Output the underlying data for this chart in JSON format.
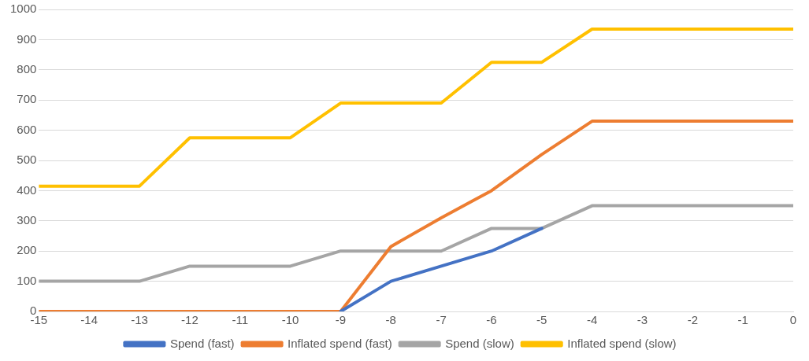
{
  "chart_data": {
    "type": "line",
    "x": [
      -15,
      -14,
      -13,
      -12,
      -11,
      -10,
      -9,
      -8,
      -7,
      -6,
      -5,
      -4,
      -3,
      -2,
      -1,
      0
    ],
    "xlim": [
      -15,
      0
    ],
    "xticks": [
      -15,
      -14,
      -13,
      -12,
      -11,
      -10,
      -9,
      -8,
      -7,
      -6,
      -5,
      -4,
      -3,
      -2,
      -1,
      0
    ],
    "ylim": [
      0,
      1000
    ],
    "yticks": [
      0,
      100,
      200,
      300,
      400,
      500,
      600,
      700,
      800,
      900,
      1000
    ],
    "grid": "y",
    "legend": "bottom",
    "marker": "none",
    "line_style": "solid",
    "series": [
      {
        "name": "Spend (fast)",
        "color": "#4472c4",
        "values": [
          null,
          null,
          null,
          null,
          null,
          null,
          0,
          100,
          150,
          200,
          275,
          null,
          null,
          null,
          null,
          null
        ]
      },
      {
        "name": "Inflated spend (fast)",
        "color": "#ed7d31",
        "values": [
          0,
          0,
          0,
          0,
          0,
          0,
          0,
          215,
          310,
          400,
          520,
          630,
          630,
          630,
          630,
          630
        ]
      },
      {
        "name": "Spend (slow)",
        "color": "#a5a5a5",
        "values": [
          100,
          100,
          100,
          150,
          150,
          150,
          200,
          200,
          200,
          275,
          275,
          350,
          350,
          350,
          350,
          350
        ]
      },
      {
        "name": "Inflated spend (slow)",
        "color": "#ffc000",
        "values": [
          415,
          415,
          415,
          575,
          575,
          575,
          690,
          690,
          690,
          825,
          825,
          935,
          935,
          935,
          935,
          935
        ]
      }
    ]
  }
}
